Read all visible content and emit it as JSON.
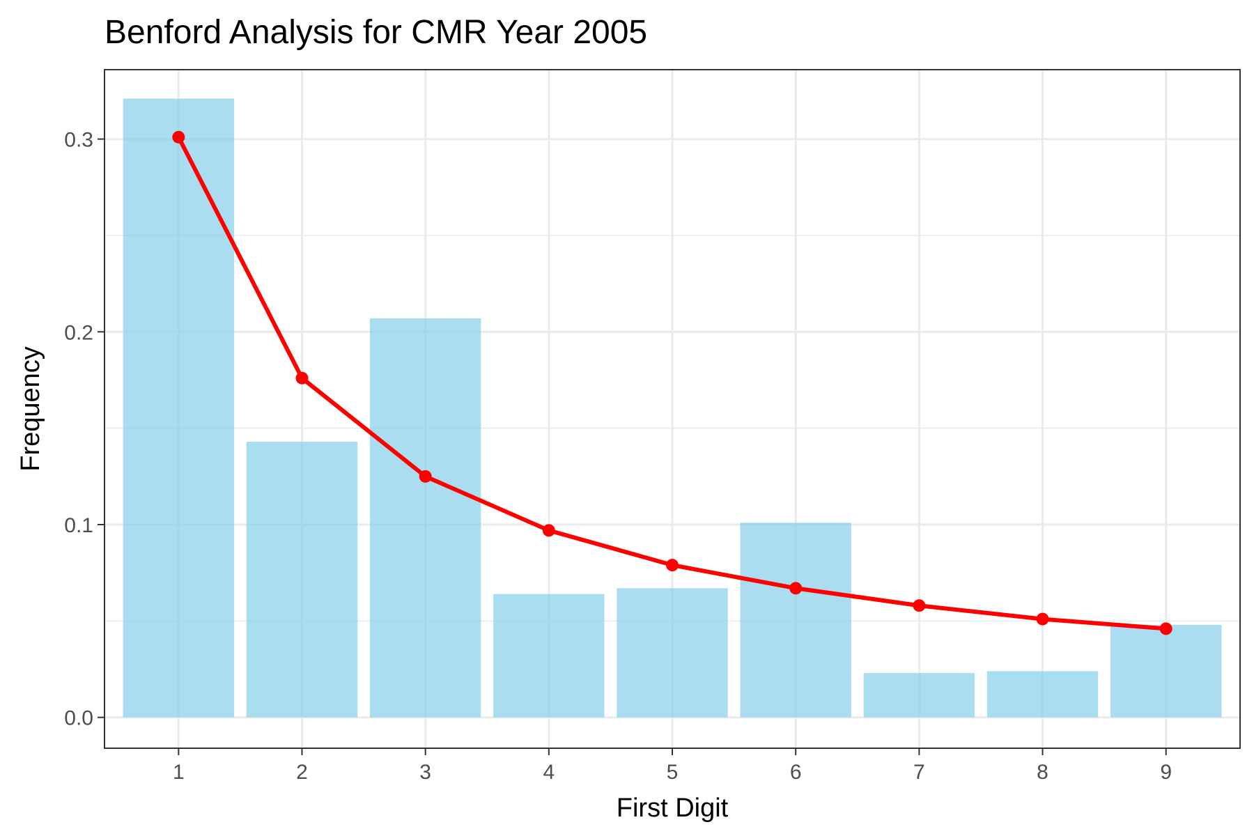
{
  "chart_data": {
    "type": "bar",
    "title": "Benford Analysis for CMR Year 2005",
    "xlabel": "First Digit",
    "ylabel": "Frequency",
    "categories": [
      "1",
      "2",
      "3",
      "4",
      "5",
      "6",
      "7",
      "8",
      "9"
    ],
    "ylim": [
      -0.016,
      0.336
    ],
    "yticks": [
      0.0,
      0.1,
      0.2,
      0.3
    ],
    "ytick_labels": [
      "0.0",
      "0.1",
      "0.2",
      "0.3"
    ],
    "grid": true,
    "series": [
      {
        "type": "bar",
        "color": "#87CEEB",
        "values": [
          0.321,
          0.143,
          0.207,
          0.064,
          0.067,
          0.101,
          0.023,
          0.024,
          0.048
        ]
      },
      {
        "type": "line",
        "color": "#FF0000",
        "values": [
          0.301,
          0.176,
          0.125,
          0.097,
          0.079,
          0.067,
          0.058,
          0.051,
          0.046
        ]
      }
    ]
  }
}
